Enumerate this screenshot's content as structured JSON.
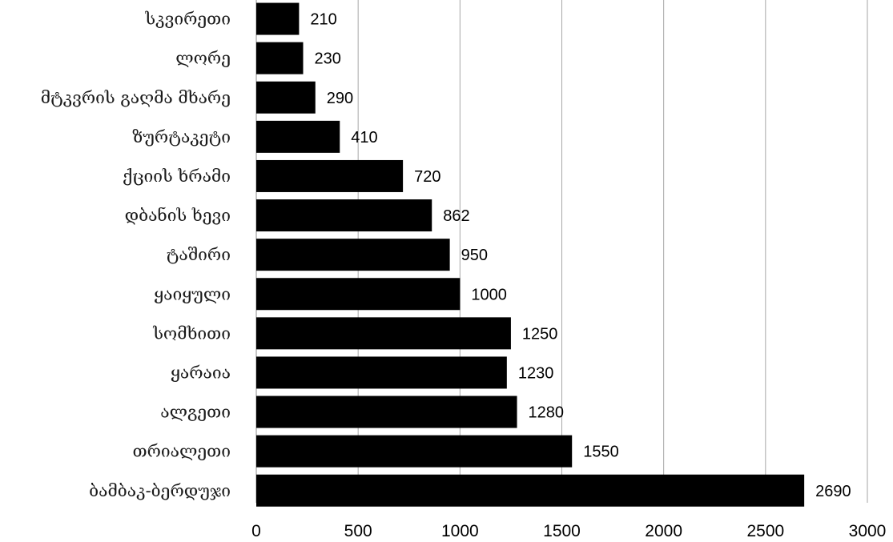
{
  "chart_data": {
    "type": "bar",
    "orientation": "horizontal",
    "categories": [
      "სკვირეთი",
      "ლორე",
      "მტკვრის გაღმა მხარე",
      "ზურტაკეტი",
      "ქციის ხრამი",
      "დბანის ხევი",
      "ტაშირი",
      "ყაიყული",
      "სომხითი",
      "ყარაია",
      "ალგეთი",
      "თრიალეთი",
      "ბამბაკ-ბერდუჯი"
    ],
    "values": [
      210,
      230,
      290,
      410,
      720,
      862,
      950,
      1000,
      1250,
      1230,
      1280,
      1550,
      2690
    ],
    "value_labels": [
      "210",
      "230",
      "290",
      "410",
      "720",
      "862",
      "950",
      "1000",
      "1250",
      "1230",
      "1280",
      "1550",
      "2690"
    ],
    "x_ticks": [
      "0",
      "500",
      "1000",
      "1500",
      "2000",
      "2500",
      "3000"
    ],
    "xlim": [
      0,
      3000
    ],
    "grid": "vertical",
    "legend": "none",
    "bar_color": "#000000",
    "grid_color": "#a6a6a6"
  }
}
